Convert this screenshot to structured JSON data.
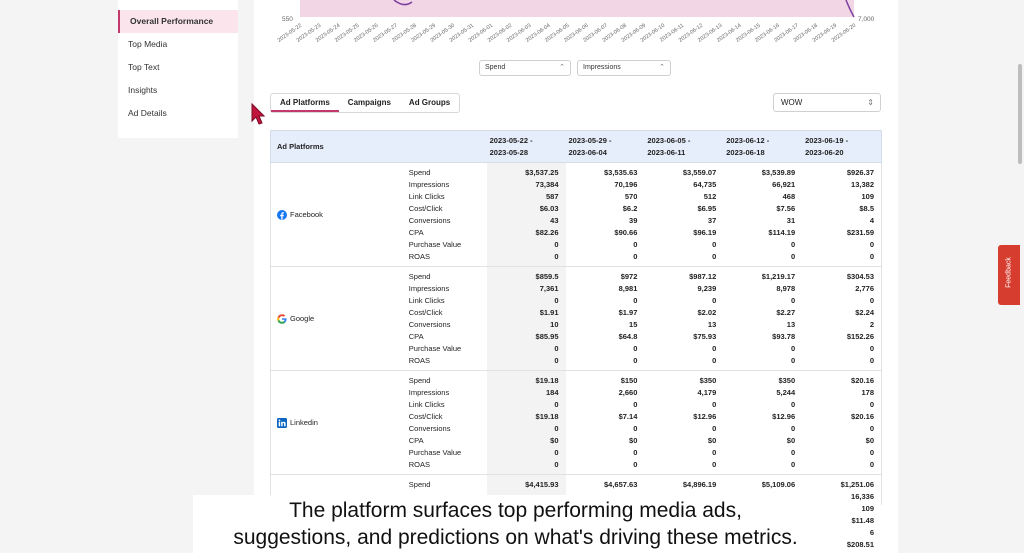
{
  "sidebar": {
    "items": [
      {
        "label": "Overall Performance",
        "active": true
      },
      {
        "label": "Top Media"
      },
      {
        "label": "Top Text"
      },
      {
        "label": "Insights"
      },
      {
        "label": "Ad Details"
      }
    ]
  },
  "chart": {
    "left_tick": "550",
    "right_tick": "7,000",
    "dates": [
      "2023-05-22",
      "2023-05-23",
      "2023-05-24",
      "2023-05-25",
      "2023-05-26",
      "2023-05-27",
      "2023-05-28",
      "2023-05-29",
      "2023-05-30",
      "2023-05-31",
      "2023-06-01",
      "2023-06-02",
      "2023-06-03",
      "2023-06-04",
      "2023-06-05",
      "2023-06-06",
      "2023-06-07",
      "2023-06-08",
      "2023-06-09",
      "2023-06-10",
      "2023-06-11",
      "2023-06-12",
      "2023-06-13",
      "2023-06-14",
      "2023-06-15",
      "2023-06-16",
      "2023-06-17",
      "2023-06-18",
      "2023-06-19",
      "2023-06-20"
    ],
    "metric_left": "Spend",
    "metric_right": "Impressions",
    "fill_color": "#f3d6e6",
    "line_color": "#7b3fa0"
  },
  "tabs": [
    {
      "label": "Ad Platforms",
      "active": true
    },
    {
      "label": "Campaigns"
    },
    {
      "label": "Ad Groups"
    }
  ],
  "comparison": "WOW",
  "table": {
    "header_label": "Ad Platforms",
    "columns": [
      {
        "l1": "2023-05-22 -",
        "l2": "2023-05-28"
      },
      {
        "l1": "2023-05-29 -",
        "l2": "2023-06-04"
      },
      {
        "l1": "2023-06-05 -",
        "l2": "2023-06-11"
      },
      {
        "l1": "2023-06-12 -",
        "l2": "2023-06-18"
      },
      {
        "l1": "2023-06-19 -",
        "l2": "2023-06-20"
      }
    ],
    "metrics": [
      "Spend",
      "Impressions",
      "Link Clicks",
      "Cost/Click",
      "Conversions",
      "CPA",
      "Purchase Value",
      "ROAS"
    ],
    "platforms": [
      {
        "name": "Facebook",
        "icon": "facebook-icon",
        "values": [
          [
            "$3,537.25",
            "73,384",
            "587",
            "$6.03",
            "43",
            "$82.26",
            "0",
            "0"
          ],
          [
            "$3,535.63",
            "70,196",
            "570",
            "$6.2",
            "39",
            "$90.66",
            "0",
            "0"
          ],
          [
            "$3,559.07",
            "64,735",
            "512",
            "$6.95",
            "37",
            "$96.19",
            "0",
            "0"
          ],
          [
            "$3,539.89",
            "66,921",
            "468",
            "$7.56",
            "31",
            "$114.19",
            "0",
            "0"
          ],
          [
            "$926.37",
            "13,382",
            "109",
            "$8.5",
            "4",
            "$231.59",
            "0",
            "0"
          ]
        ]
      },
      {
        "name": "Google",
        "icon": "google-icon",
        "values": [
          [
            "$859.5",
            "7,361",
            "0",
            "$1.91",
            "10",
            "$85.95",
            "0",
            "0"
          ],
          [
            "$972",
            "8,981",
            "0",
            "$1.97",
            "15",
            "$64.8",
            "0",
            "0"
          ],
          [
            "$987.12",
            "9,239",
            "0",
            "$2.02",
            "13",
            "$75.93",
            "0",
            "0"
          ],
          [
            "$1,219.17",
            "8,978",
            "0",
            "$2.27",
            "13",
            "$93.78",
            "0",
            "0"
          ],
          [
            "$304.53",
            "2,776",
            "0",
            "$2.24",
            "2",
            "$152.26",
            "0",
            "0"
          ]
        ]
      },
      {
        "name": "Linkedin",
        "icon": "linkedin-icon",
        "values": [
          [
            "$19.18",
            "184",
            "0",
            "$19.18",
            "0",
            "$0",
            "0",
            "0"
          ],
          [
            "$150",
            "2,660",
            "0",
            "$7.14",
            "0",
            "$0",
            "0",
            "0"
          ],
          [
            "$350",
            "4,179",
            "0",
            "$12.96",
            "0",
            "$0",
            "0",
            "0"
          ],
          [
            "$350",
            "5,244",
            "0",
            "$12.96",
            "0",
            "$0",
            "0",
            "0"
          ],
          [
            "$20.16",
            "178",
            "0",
            "$20.16",
            "0",
            "$0",
            "0",
            "0"
          ]
        ]
      }
    ],
    "partial_row": {
      "label": "Spend",
      "values": [
        "$4,415.93",
        "$4,657.63",
        "$4,896.19",
        "$5,109.06",
        "$1,251.06"
      ],
      "right_extra": [
        "16,336",
        "109",
        "$11.48",
        "6",
        "$208.51"
      ]
    }
  },
  "caption": {
    "line1": "The platform surfaces top performing media ads,",
    "line2": "suggestions, and predictions on what's driving these metrics."
  },
  "feedback_label": "Feedback"
}
